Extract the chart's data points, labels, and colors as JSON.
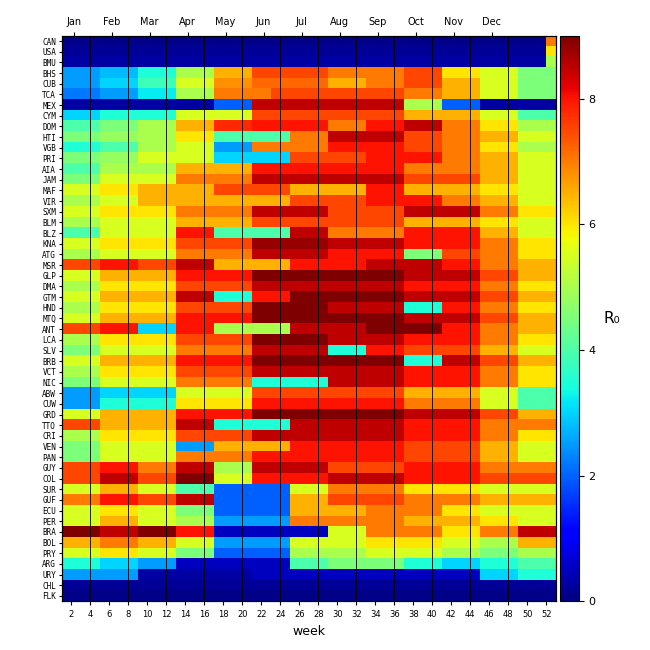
{
  "countries": [
    "CAN",
    "USA",
    "BMU",
    "BHS",
    "CUB",
    "TCA",
    "MEX",
    "CYM",
    "DOM",
    "HTI",
    "VGB",
    "PRI",
    "AIA",
    "JAM",
    "MAF",
    "VIR",
    "SXM",
    "BLM",
    "BLZ",
    "KNA",
    "ATG",
    "MSR",
    "GLP",
    "DMA",
    "GTM",
    "HND",
    "MTQ",
    "ANT",
    "LCA",
    "SLV",
    "BRB",
    "VCT",
    "NIC",
    "ABW",
    "CUW",
    "GRD",
    "TTO",
    "CRI",
    "VEN",
    "PAN",
    "GUY",
    "COL",
    "SUR",
    "GUF",
    "ECU",
    "PER",
    "BRA",
    "BOL",
    "PRY",
    "ARG",
    "URY",
    "CHL",
    "FLK"
  ],
  "n_weeks": 52,
  "xlabel": "week",
  "ylabel": "R₀",
  "vmin": 0,
  "vmax": 9,
  "month_labels": [
    "Jan",
    "Feb",
    "Mar",
    "Apr",
    "May",
    "Jun",
    "Jul",
    "Aug",
    "Sep",
    "Oct",
    "Nov",
    "Dec"
  ],
  "month_boundaries": [
    3.5,
    7.5,
    11.5,
    15.5,
    19.5,
    23.5,
    27.5,
    31.5,
    35.5,
    39.5,
    43.5,
    47.5
  ],
  "month_tick_positions": [
    1.75,
    5.75,
    9.75,
    13.75,
    17.75,
    21.75,
    25.75,
    29.75,
    33.75,
    37.75,
    41.75,
    45.75
  ],
  "week_ticks": [
    2,
    4,
    6,
    8,
    10,
    12,
    14,
    16,
    18,
    20,
    22,
    24,
    26,
    28,
    30,
    32,
    34,
    36,
    38,
    40,
    42,
    44,
    46,
    48,
    50,
    52
  ]
}
